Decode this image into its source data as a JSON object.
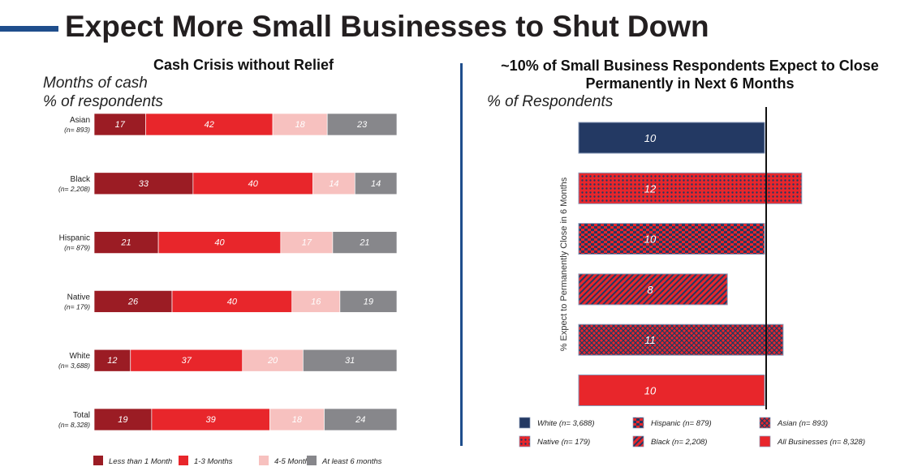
{
  "page": {
    "title": "Expect More Small Businesses to Shut Down"
  },
  "colors": {
    "dark_red": "#9b1c24",
    "red": "#e8262b",
    "pink": "#f7c1bf",
    "gray": "#87878b",
    "navy": "#233963",
    "accent_blue": "#1f4e8c"
  },
  "chart_data": [
    {
      "type": "bar",
      "orientation": "horizontal",
      "stacked": true,
      "title": "Cash Crisis without Relief",
      "subtitle": [
        "Months of cash",
        "% of respondents"
      ],
      "categories": [
        {
          "name": "Asian",
          "n": "(n= 893)"
        },
        {
          "name": "Black",
          "n": "(n= 2,208)"
        },
        {
          "name": "Hispanic",
          "n": "(n= 879)"
        },
        {
          "name": "Native",
          "n": "(n= 179)"
        },
        {
          "name": "White",
          "n": "(n= 3,688)"
        },
        {
          "name": "Total",
          "n": "(n= 8,328)"
        }
      ],
      "series": [
        {
          "name": "Less than 1 Month",
          "color": "#9b1c24",
          "values": [
            17,
            33,
            21,
            26,
            12,
            19
          ]
        },
        {
          "name": "1-3 Months",
          "color": "#e8262b",
          "values": [
            42,
            40,
            40,
            40,
            37,
            39
          ]
        },
        {
          "name": "4-5 Months",
          "color": "#f7c1bf",
          "values": [
            18,
            14,
            17,
            16,
            20,
            18
          ]
        },
        {
          "name": "At least 6 months",
          "color": "#87878b",
          "values": [
            23,
            14,
            21,
            19,
            31,
            24
          ]
        }
      ],
      "legend": "bottom"
    },
    {
      "type": "bar",
      "orientation": "horizontal",
      "title": "~10% of Small Business Respondents Expect to Close Permanently in Next 6 Months",
      "subtitle": "% of Respondents",
      "ylabel": "% Expect to Permanently Close in 6 Months",
      "reference_line": 10,
      "bars": [
        {
          "name": "White",
          "value": 10,
          "pattern": "solid-navy"
        },
        {
          "name": "Native",
          "value": 12,
          "pattern": "dots"
        },
        {
          "name": "Hispanic",
          "value": 10,
          "pattern": "checker"
        },
        {
          "name": "Black",
          "value": 8,
          "pattern": "diagonal"
        },
        {
          "name": "Asian",
          "value": 11,
          "pattern": "crosshatch"
        },
        {
          "name": "All Businesses",
          "value": 10,
          "pattern": "solid-red"
        }
      ],
      "legend_items": [
        "White (n= 3,688)",
        "Hispanic (n= 879)",
        "Asian (n= 893)",
        "Native (n= 179)",
        "Black (n= 2,208)",
        "All Businesses (n= 8,328)"
      ],
      "legend_patterns": [
        "solid-navy",
        "checker",
        "crosshatch",
        "dots",
        "diagonal",
        "solid-red"
      ],
      "legend": "bottom"
    }
  ]
}
